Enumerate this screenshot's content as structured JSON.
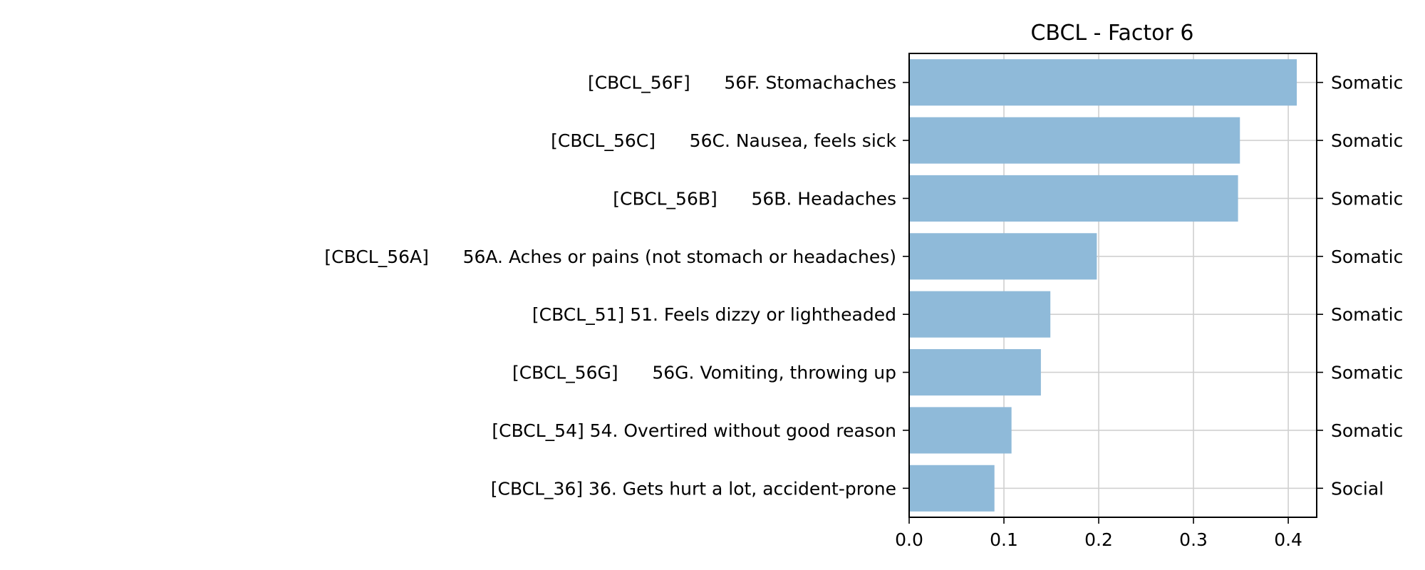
{
  "chart_data": {
    "type": "bar",
    "orientation": "horizontal",
    "title": "CBCL - Factor 6",
    "xlabel": "",
    "ylabel": "",
    "xlim": [
      0,
      0.43
    ],
    "x_ticks": [
      0.0,
      0.1,
      0.2,
      0.3,
      0.4
    ],
    "x_tick_labels": [
      "0.0",
      "0.1",
      "0.2",
      "0.3",
      "0.4"
    ],
    "grid": true,
    "bar_color": "#8fbad9",
    "categories": [
      "[CBCL_56F]      56F. Stomachaches",
      "[CBCL_56C]      56C. Nausea, feels sick",
      "[CBCL_56B]      56B. Headaches",
      "[CBCL_56A]      56A. Aches or pains (not stomach or headaches)",
      "[CBCL_51] 51. Feels dizzy or lightheaded",
      "[CBCL_56G]      56G. Vomiting, throwing up",
      "[CBCL_54] 54. Overtired without good reason",
      "[CBCL_36] 36. Gets hurt a lot, accident-prone"
    ],
    "values": [
      0.409,
      0.349,
      0.347,
      0.198,
      0.149,
      0.139,
      0.108,
      0.09
    ],
    "right_labels": [
      "Somatic",
      "Somatic",
      "Somatic",
      "Somatic",
      "Somatic",
      "Somatic",
      "Somatic",
      "Social"
    ]
  }
}
